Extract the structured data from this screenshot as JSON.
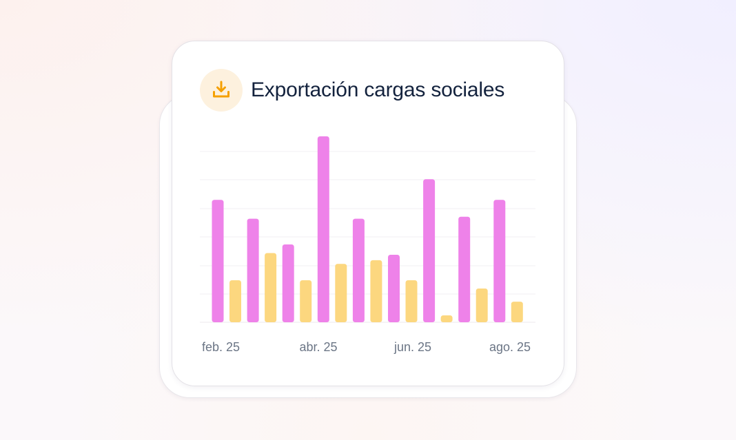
{
  "card": {
    "title": "Exportación cargas sociales",
    "icon": "download-icon"
  },
  "colors": {
    "series_pink": "#ee82e9",
    "series_yellow": "#fcd77f",
    "icon_accent": "#f5a000",
    "icon_bg": "#fdf1de",
    "title": "#13223d"
  },
  "chart_data": {
    "type": "bar",
    "tick_labels": [
      "feb. 25",
      "abr. 25",
      "jun. 25",
      "ago. 25"
    ],
    "ylim": [
      0,
      65
    ],
    "grid": true,
    "series": [
      {
        "color": "#ee82e9",
        "values": [
          42.8,
          36.2,
          27.2,
          65.0,
          36.2,
          23.6,
          50.0,
          36.9,
          42.8
        ]
      },
      {
        "color": "#fcd77f",
        "values": [
          14.7,
          24.2,
          14.7,
          20.4,
          21.7,
          14.7,
          2.4,
          11.8,
          7.2
        ]
      }
    ]
  }
}
